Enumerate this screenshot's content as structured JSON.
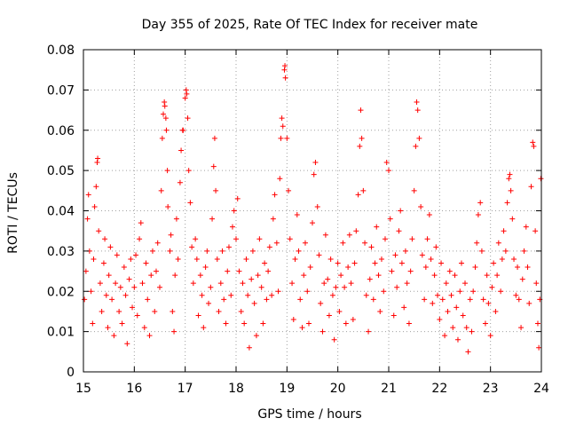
{
  "chart_data": {
    "type": "scatter",
    "title": "Day 355 of 2025, Rate Of TEC Index for receiver mate",
    "xlabel": "GPS time / hours",
    "ylabel": "ROTI / TECUs",
    "xlim": [
      15,
      24
    ],
    "ylim": [
      0,
      0.08
    ],
    "grid": true,
    "marker": "+",
    "color": "#ff0000",
    "x_ticks": [
      {
        "value": 15,
        "label": "15"
      },
      {
        "value": 16,
        "label": "16"
      },
      {
        "value": 17,
        "label": "17"
      },
      {
        "value": 18,
        "label": "18"
      },
      {
        "value": 19,
        "label": "19"
      },
      {
        "value": 20,
        "label": "20"
      },
      {
        "value": 21,
        "label": "21"
      },
      {
        "value": 22,
        "label": "22"
      },
      {
        "value": 23,
        "label": "23"
      },
      {
        "value": 24,
        "label": "24"
      }
    ],
    "y_ticks": [
      {
        "value": 0,
        "label": "0"
      },
      {
        "value": 0.01,
        "label": "0.01"
      },
      {
        "value": 0.02,
        "label": "0.02"
      },
      {
        "value": 0.03,
        "label": "0.03"
      },
      {
        "value": 0.04,
        "label": "0.04"
      },
      {
        "value": 0.05,
        "label": "0.05"
      },
      {
        "value": 0.06,
        "label": "0.06"
      },
      {
        "value": 0.07,
        "label": "0.07"
      },
      {
        "value": 0.08,
        "label": "0.08"
      }
    ],
    "series": [
      {
        "name": "ROTI",
        "points": [
          [
            15.02,
            0.018
          ],
          [
            15.05,
            0.025
          ],
          [
            15.08,
            0.038
          ],
          [
            15.1,
            0.044
          ],
          [
            15.12,
            0.03
          ],
          [
            15.15,
            0.02
          ],
          [
            15.18,
            0.012
          ],
          [
            15.2,
            0.028
          ],
          [
            15.22,
            0.041
          ],
          [
            15.25,
            0.046
          ],
          [
            15.27,
            0.052
          ],
          [
            15.28,
            0.053
          ],
          [
            15.3,
            0.035
          ],
          [
            15.33,
            0.022
          ],
          [
            15.36,
            0.015
          ],
          [
            15.4,
            0.027
          ],
          [
            15.42,
            0.033
          ],
          [
            15.45,
            0.019
          ],
          [
            15.48,
            0.011
          ],
          [
            15.5,
            0.024
          ],
          [
            15.53,
            0.031
          ],
          [
            15.56,
            0.018
          ],
          [
            15.6,
            0.009
          ],
          [
            15.63,
            0.022
          ],
          [
            15.66,
            0.029
          ],
          [
            15.7,
            0.015
          ],
          [
            15.73,
            0.021
          ],
          [
            15.76,
            0.012
          ],
          [
            15.8,
            0.026
          ],
          [
            15.83,
            0.019
          ],
          [
            15.86,
            0.007
          ],
          [
            15.9,
            0.023
          ],
          [
            15.93,
            0.028
          ],
          [
            15.96,
            0.016
          ],
          [
            16.0,
            0.021
          ],
          [
            16.03,
            0.029
          ],
          [
            16.06,
            0.014
          ],
          [
            16.1,
            0.033
          ],
          [
            16.13,
            0.037
          ],
          [
            16.16,
            0.022
          ],
          [
            16.2,
            0.011
          ],
          [
            16.23,
            0.027
          ],
          [
            16.26,
            0.018
          ],
          [
            16.3,
            0.009
          ],
          [
            16.33,
            0.024
          ],
          [
            16.36,
            0.03
          ],
          [
            16.4,
            0.015
          ],
          [
            16.43,
            0.025
          ],
          [
            16.46,
            0.032
          ],
          [
            16.5,
            0.021
          ],
          [
            16.53,
            0.045
          ],
          [
            16.55,
            0.058
          ],
          [
            16.57,
            0.064
          ],
          [
            16.59,
            0.067
          ],
          [
            16.6,
            0.066
          ],
          [
            16.62,
            0.063
          ],
          [
            16.63,
            0.06
          ],
          [
            16.65,
            0.05
          ],
          [
            16.66,
            0.041
          ],
          [
            16.7,
            0.03
          ],
          [
            16.72,
            0.034
          ],
          [
            16.75,
            0.015
          ],
          [
            16.78,
            0.01
          ],
          [
            16.8,
            0.024
          ],
          [
            16.83,
            0.038
          ],
          [
            16.86,
            0.028
          ],
          [
            16.9,
            0.047
          ],
          [
            16.92,
            0.055
          ],
          [
            16.95,
            0.06
          ],
          [
            16.96,
            0.06
          ],
          [
            17.0,
            0.068
          ],
          [
            17.02,
            0.07
          ],
          [
            17.03,
            0.069
          ],
          [
            17.05,
            0.063
          ],
          [
            17.07,
            0.05
          ],
          [
            17.1,
            0.042
          ],
          [
            17.13,
            0.031
          ],
          [
            17.16,
            0.022
          ],
          [
            17.2,
            0.033
          ],
          [
            17.23,
            0.028
          ],
          [
            17.26,
            0.014
          ],
          [
            17.3,
            0.024
          ],
          [
            17.33,
            0.019
          ],
          [
            17.36,
            0.011
          ],
          [
            17.4,
            0.026
          ],
          [
            17.43,
            0.03
          ],
          [
            17.46,
            0.017
          ],
          [
            17.5,
            0.021
          ],
          [
            17.53,
            0.038
          ],
          [
            17.56,
            0.051
          ],
          [
            17.58,
            0.058
          ],
          [
            17.6,
            0.045
          ],
          [
            17.63,
            0.028
          ],
          [
            17.66,
            0.015
          ],
          [
            17.7,
            0.022
          ],
          [
            17.73,
            0.03
          ],
          [
            17.76,
            0.018
          ],
          [
            17.8,
            0.012
          ],
          [
            17.83,
            0.025
          ],
          [
            17.86,
            0.031
          ],
          [
            17.9,
            0.019
          ],
          [
            17.93,
            0.036
          ],
          [
            17.96,
            0.04
          ],
          [
            18.0,
            0.033
          ],
          [
            18.03,
            0.043
          ],
          [
            18.06,
            0.025
          ],
          [
            18.1,
            0.015
          ],
          [
            18.13,
            0.022
          ],
          [
            18.16,
            0.012
          ],
          [
            18.2,
            0.028
          ],
          [
            18.23,
            0.019
          ],
          [
            18.26,
            0.006
          ],
          [
            18.3,
            0.023
          ],
          [
            18.33,
            0.03
          ],
          [
            18.36,
            0.017
          ],
          [
            18.4,
            0.009
          ],
          [
            18.43,
            0.024
          ],
          [
            18.46,
            0.033
          ],
          [
            18.5,
            0.021
          ],
          [
            18.53,
            0.012
          ],
          [
            18.56,
            0.027
          ],
          [
            18.6,
            0.018
          ],
          [
            18.63,
            0.025
          ],
          [
            18.66,
            0.031
          ],
          [
            18.7,
            0.019
          ],
          [
            18.73,
            0.038
          ],
          [
            18.76,
            0.044
          ],
          [
            18.8,
            0.032
          ],
          [
            18.83,
            0.02
          ],
          [
            18.86,
            0.048
          ],
          [
            18.88,
            0.058
          ],
          [
            18.9,
            0.063
          ],
          [
            18.92,
            0.061
          ],
          [
            18.95,
            0.075
          ],
          [
            18.96,
            0.076
          ],
          [
            18.97,
            0.073
          ],
          [
            19.0,
            0.058
          ],
          [
            19.03,
            0.045
          ],
          [
            19.06,
            0.033
          ],
          [
            19.1,
            0.022
          ],
          [
            19.13,
            0.013
          ],
          [
            19.16,
            0.028
          ],
          [
            19.2,
            0.039
          ],
          [
            19.23,
            0.03
          ],
          [
            19.26,
            0.018
          ],
          [
            19.3,
            0.011
          ],
          [
            19.33,
            0.024
          ],
          [
            19.36,
            0.032
          ],
          [
            19.4,
            0.02
          ],
          [
            19.43,
            0.012
          ],
          [
            19.46,
            0.026
          ],
          [
            19.5,
            0.037
          ],
          [
            19.53,
            0.049
          ],
          [
            19.56,
            0.052
          ],
          [
            19.6,
            0.041
          ],
          [
            19.63,
            0.029
          ],
          [
            19.66,
            0.017
          ],
          [
            19.7,
            0.01
          ],
          [
            19.73,
            0.022
          ],
          [
            19.76,
            0.034
          ],
          [
            19.8,
            0.023
          ],
          [
            19.83,
            0.014
          ],
          [
            19.86,
            0.028
          ],
          [
            19.9,
            0.019
          ],
          [
            19.93,
            0.008
          ],
          [
            19.96,
            0.021
          ],
          [
            20.0,
            0.027
          ],
          [
            20.03,
            0.015
          ],
          [
            20.06,
            0.024
          ],
          [
            20.1,
            0.032
          ],
          [
            20.13,
            0.021
          ],
          [
            20.16,
            0.012
          ],
          [
            20.2,
            0.026
          ],
          [
            20.23,
            0.034
          ],
          [
            20.26,
            0.022
          ],
          [
            20.3,
            0.013
          ],
          [
            20.33,
            0.027
          ],
          [
            20.36,
            0.035
          ],
          [
            20.4,
            0.044
          ],
          [
            20.43,
            0.056
          ],
          [
            20.45,
            0.065
          ],
          [
            20.47,
            0.058
          ],
          [
            20.5,
            0.045
          ],
          [
            20.53,
            0.032
          ],
          [
            20.56,
            0.019
          ],
          [
            20.6,
            0.01
          ],
          [
            20.63,
            0.023
          ],
          [
            20.66,
            0.031
          ],
          [
            20.7,
            0.018
          ],
          [
            20.73,
            0.027
          ],
          [
            20.76,
            0.036
          ],
          [
            20.8,
            0.024
          ],
          [
            20.83,
            0.015
          ],
          [
            20.86,
            0.028
          ],
          [
            20.9,
            0.02
          ],
          [
            20.93,
            0.033
          ],
          [
            20.96,
            0.052
          ],
          [
            21.0,
            0.05
          ],
          [
            21.03,
            0.038
          ],
          [
            21.06,
            0.025
          ],
          [
            21.1,
            0.014
          ],
          [
            21.13,
            0.029
          ],
          [
            21.16,
            0.021
          ],
          [
            21.2,
            0.035
          ],
          [
            21.23,
            0.04
          ],
          [
            21.26,
            0.027
          ],
          [
            21.3,
            0.016
          ],
          [
            21.33,
            0.03
          ],
          [
            21.36,
            0.022
          ],
          [
            21.4,
            0.012
          ],
          [
            21.43,
            0.025
          ],
          [
            21.46,
            0.033
          ],
          [
            21.5,
            0.045
          ],
          [
            21.53,
            0.056
          ],
          [
            21.55,
            0.067
          ],
          [
            21.57,
            0.065
          ],
          [
            21.6,
            0.058
          ],
          [
            21.63,
            0.041
          ],
          [
            21.66,
            0.029
          ],
          [
            21.7,
            0.018
          ],
          [
            21.73,
            0.026
          ],
          [
            21.76,
            0.033
          ],
          [
            21.8,
            0.039
          ],
          [
            21.83,
            0.028
          ],
          [
            21.86,
            0.017
          ],
          [
            21.9,
            0.024
          ],
          [
            21.93,
            0.031
          ],
          [
            21.96,
            0.019
          ],
          [
            22.0,
            0.013
          ],
          [
            22.03,
            0.027
          ],
          [
            22.06,
            0.018
          ],
          [
            22.1,
            0.009
          ],
          [
            22.13,
            0.022
          ],
          [
            22.16,
            0.015
          ],
          [
            22.2,
            0.025
          ],
          [
            22.23,
            0.019
          ],
          [
            22.26,
            0.011
          ],
          [
            22.3,
            0.024
          ],
          [
            22.33,
            0.016
          ],
          [
            22.36,
            0.008
          ],
          [
            22.4,
            0.02
          ],
          [
            22.43,
            0.027
          ],
          [
            22.46,
            0.014
          ],
          [
            22.5,
            0.022
          ],
          [
            22.53,
            0.011
          ],
          [
            22.56,
            0.005
          ],
          [
            22.6,
            0.018
          ],
          [
            22.63,
            0.01
          ],
          [
            22.66,
            0.02
          ],
          [
            22.7,
            0.026
          ],
          [
            22.73,
            0.032
          ],
          [
            22.76,
            0.039
          ],
          [
            22.8,
            0.042
          ],
          [
            22.83,
            0.03
          ],
          [
            22.86,
            0.018
          ],
          [
            22.9,
            0.012
          ],
          [
            22.93,
            0.024
          ],
          [
            22.96,
            0.017
          ],
          [
            23.0,
            0.009
          ],
          [
            23.03,
            0.021
          ],
          [
            23.06,
            0.027
          ],
          [
            23.1,
            0.015
          ],
          [
            23.13,
            0.024
          ],
          [
            23.16,
            0.032
          ],
          [
            23.2,
            0.02
          ],
          [
            23.23,
            0.028
          ],
          [
            23.26,
            0.035
          ],
          [
            23.3,
            0.03
          ],
          [
            23.33,
            0.042
          ],
          [
            23.36,
            0.048
          ],
          [
            23.38,
            0.049
          ],
          [
            23.4,
            0.045
          ],
          [
            23.43,
            0.038
          ],
          [
            23.46,
            0.028
          ],
          [
            23.5,
            0.019
          ],
          [
            23.53,
            0.026
          ],
          [
            23.56,
            0.018
          ],
          [
            23.6,
            0.011
          ],
          [
            23.63,
            0.023
          ],
          [
            23.66,
            0.03
          ],
          [
            23.7,
            0.036
          ],
          [
            23.73,
            0.026
          ],
          [
            23.76,
            0.017
          ],
          [
            23.8,
            0.046
          ],
          [
            23.83,
            0.057
          ],
          [
            23.85,
            0.056
          ],
          [
            23.88,
            0.035
          ],
          [
            23.9,
            0.022
          ],
          [
            23.93,
            0.012
          ],
          [
            23.95,
            0.006
          ],
          [
            23.97,
            0.018
          ],
          [
            23.99,
            0.048
          ]
        ]
      }
    ]
  }
}
